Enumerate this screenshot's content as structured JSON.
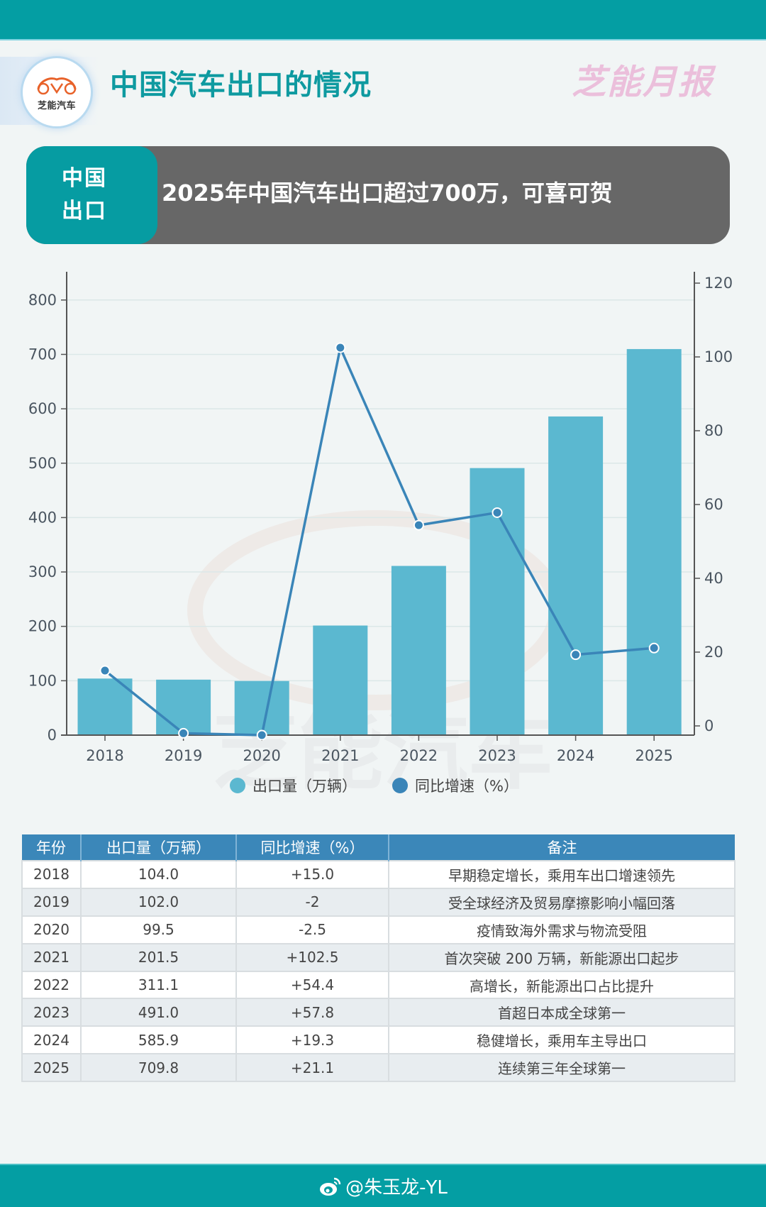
{
  "header": {
    "logo_text": "芝能汽车",
    "title": "中国汽车出口的情况",
    "brand": "芝能月报"
  },
  "banner": {
    "tag_line1": "中国",
    "tag_line2": "出口",
    "title": "2025年中国汽车出口超过700万，可喜可贺"
  },
  "colors": {
    "topbar": "#049ea3",
    "title": "#0e9aa0",
    "brand": "#ebbfdb",
    "banner_bg": "#676767",
    "bar": "#5bb8d0",
    "line": "#3a85b8",
    "table_header": "#3b87b9",
    "axis_text": "#4a5560"
  },
  "chart_data": {
    "type": "bar",
    "title": "",
    "categories": [
      "2018",
      "2019",
      "2020",
      "2021",
      "2022",
      "2023",
      "2024",
      "2025"
    ],
    "series": [
      {
        "name": "出口量（万辆）",
        "type": "bar",
        "axis": "left",
        "color": "#5bb8d0",
        "values": [
          104.0,
          102.0,
          99.5,
          201.5,
          311.1,
          491.0,
          585.9,
          709.8
        ]
      },
      {
        "name": "同比增速（%）",
        "type": "line",
        "axis": "right",
        "color": "#3a85b8",
        "values": [
          15.0,
          -2,
          -2.5,
          102.5,
          54.4,
          57.8,
          19.3,
          21.1
        ]
      }
    ],
    "xlabel": "",
    "ylabel": "",
    "ylim": [
      0,
      850
    ],
    "y_ticks": [
      0,
      100,
      200,
      300,
      400,
      500,
      600,
      700,
      800
    ],
    "y2lim": [
      -4.8,
      123.5
    ],
    "y2_ticks": [
      0,
      20,
      40,
      60,
      80,
      100,
      120
    ],
    "grid": true,
    "legend_position": "bottom"
  },
  "legend": {
    "bar_label": "出口量（万辆）",
    "line_label": "同比增速（%）"
  },
  "table": {
    "headers": [
      "年份",
      "出口量（万辆）",
      "同比增速（%）",
      "备注"
    ],
    "rows": [
      [
        "2018",
        "104.0",
        "+15.0",
        "早期稳定增长，乘用车出口增速领先"
      ],
      [
        "2019",
        "102.0",
        "-2",
        "受全球经济及贸易摩擦影响小幅回落"
      ],
      [
        "2020",
        "99.5",
        "-2.5",
        "疫情致海外需求与物流受阻"
      ],
      [
        "2021",
        "201.5",
        "+102.5",
        "首次突破 200 万辆，新能源出口起步"
      ],
      [
        "2022",
        "311.1",
        "+54.4",
        "高增长，新能源出口占比提升"
      ],
      [
        "2023",
        "491.0",
        "+57.8",
        "首超日本成全球第一"
      ],
      [
        "2024",
        "585.9",
        "+19.3",
        "稳健增长，乘用车主导出口"
      ],
      [
        "2025",
        "709.8",
        "+21.1",
        "连续第三年全球第一"
      ]
    ]
  },
  "footer": {
    "weibo_handle": "@朱玉龙-YL"
  }
}
